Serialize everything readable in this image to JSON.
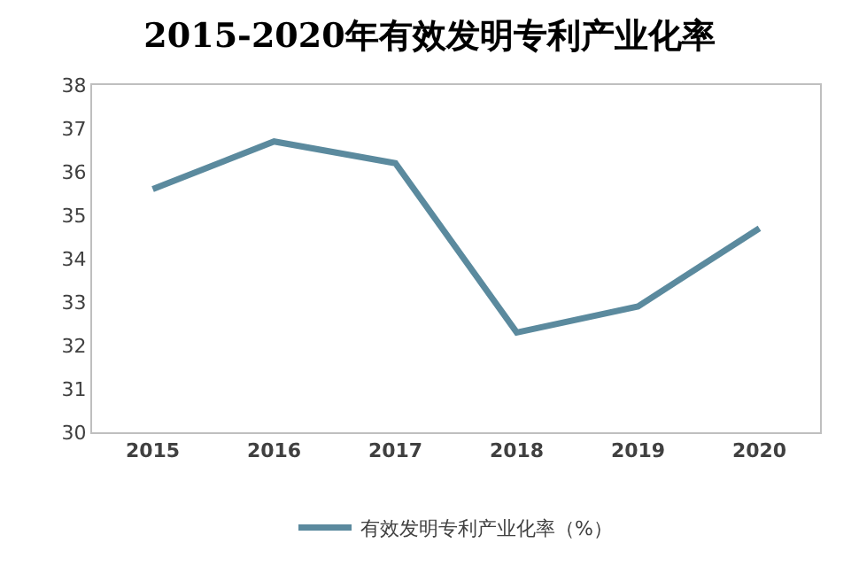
{
  "chart_data": {
    "type": "line",
    "title": "2015-2020年有效发明专利产业化率",
    "categories": [
      "2015",
      "2016",
      "2017",
      "2018",
      "2019",
      "2020"
    ],
    "series": [
      {
        "name": "有效发明专利产业化率（%）",
        "color": "#5b8a9e",
        "values": [
          35.6,
          36.7,
          36.2,
          32.3,
          32.9,
          34.7
        ]
      }
    ],
    "ylim": [
      30,
      38
    ],
    "yticks": [
      30,
      31,
      32,
      33,
      34,
      35,
      36,
      37,
      38
    ],
    "grid": false,
    "legend": "bottom",
    "marker": "none",
    "line_style": "solid"
  }
}
